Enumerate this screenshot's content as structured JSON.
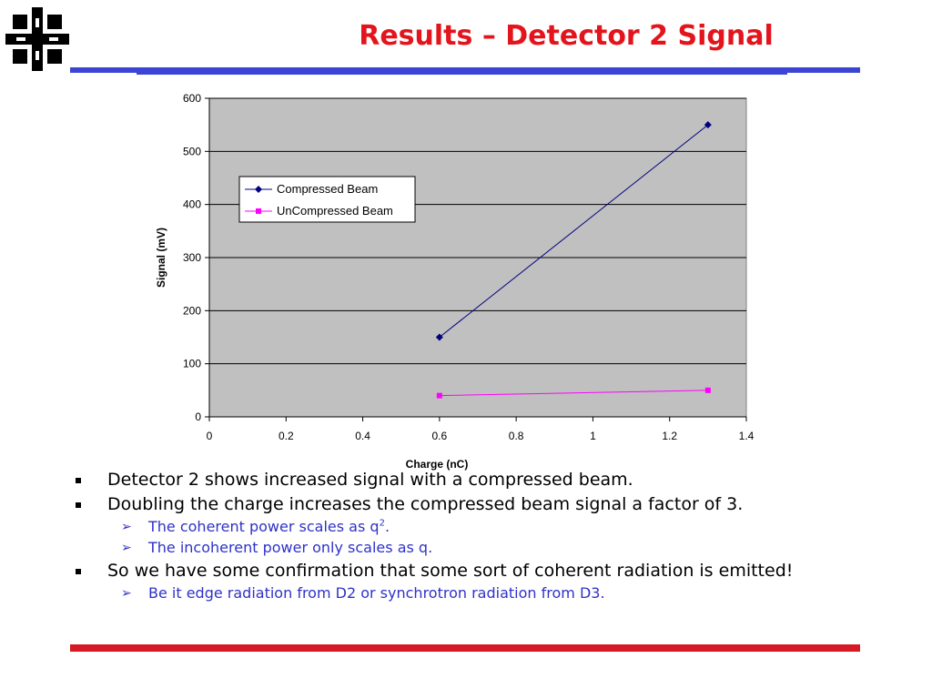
{
  "slide": {
    "title": "Results – Detector 2 Signal",
    "logo_icon": "fermilab-logo-icon",
    "colors": {
      "title": "#e3141c",
      "top_rule": "#3b44d4",
      "bottom_rule": "#d51a24",
      "sub_bullet": "#2f32c8"
    }
  },
  "chart_data": {
    "type": "line",
    "title": "",
    "xlabel": "Charge (nC)",
    "ylabel": "Signal (mV)",
    "xlim": [
      0,
      1.4
    ],
    "ylim": [
      0,
      600
    ],
    "xticks": [
      "0",
      "0.2",
      "0.4",
      "0.6",
      "0.8",
      "1",
      "1.2",
      "1.4"
    ],
    "yticks": [
      "0",
      "100",
      "200",
      "300",
      "400",
      "500",
      "600"
    ],
    "grid": "horizontal",
    "plot_background": "#c0c0c0",
    "legend_position": "upper-left",
    "series": [
      {
        "name": "Compressed Beam",
        "color": "#000080",
        "marker": "diamond",
        "x": [
          0.6,
          1.3
        ],
        "y": [
          150,
          550
        ]
      },
      {
        "name": "UnCompressed Beam",
        "color": "#ff00ff",
        "marker": "square",
        "x": [
          0.6,
          1.3
        ],
        "y": [
          40,
          50
        ]
      }
    ]
  },
  "bullets": [
    {
      "text": "Detector 2 shows increased signal with a compressed beam."
    },
    {
      "text": "Doubling the charge increases the compressed beam signal a factor of 3."
    },
    {
      "sub_pre": "The coherent power scales as q",
      "sub_sup": "2",
      "sub_post": "."
    },
    {
      "text": "The incoherent power only scales as q."
    },
    {
      "text": "So we have some confirmation that some sort of coherent radiation is emitted!"
    },
    {
      "text": "Be it edge radiation from D2 or synchrotron radiation from D3."
    }
  ],
  "bullet_icons": {
    "level1": "square-bullet-icon",
    "level2": "arrow-bullet-icon"
  },
  "arrow_glyph": "➢"
}
